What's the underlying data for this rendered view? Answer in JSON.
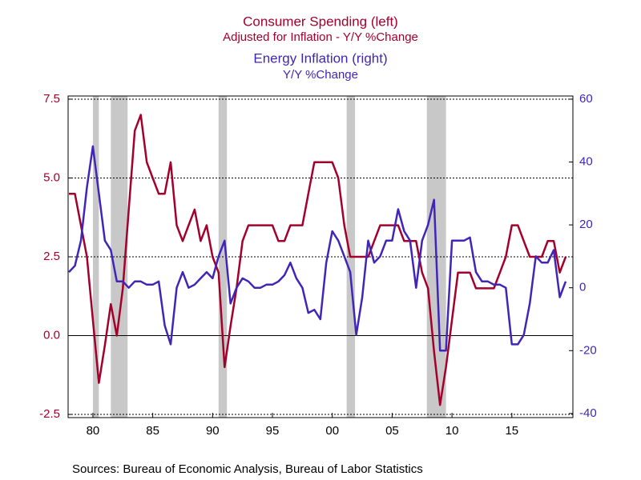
{
  "chart_data": {
    "type": "line",
    "title": "Consumer Spending (left)",
    "subtitle": "Adjusted for Inflation - Y/Y %Change",
    "title2": "Energy Inflation (right)",
    "subtitle2": "Y/Y %Change",
    "source": "Sources:  Bureau of Economic Analysis, Bureau of Labor Statistics",
    "x": [
      1978.0,
      1978.5,
      1979.0,
      1979.5,
      1980.0,
      1980.5,
      1981.0,
      1981.5,
      1982.0,
      1982.5,
      1983.0,
      1983.5,
      1984.0,
      1984.5,
      1985.0,
      1985.5,
      1986.0,
      1986.5,
      1987.0,
      1987.5,
      1988.0,
      1988.5,
      1989.0,
      1989.5,
      1990.0,
      1990.5,
      1991.0,
      1991.5,
      1992.0,
      1992.5,
      1993.0,
      1993.5,
      1994.0,
      1994.5,
      1995.0,
      1995.5,
      1996.0,
      1996.5,
      1997.0,
      1997.5,
      1998.0,
      1998.5,
      1999.0,
      1999.5,
      2000.0,
      2000.5,
      2001.0,
      2001.5,
      2002.0,
      2002.5,
      2003.0,
      2003.5,
      2004.0,
      2004.5,
      2005.0,
      2005.5,
      2006.0,
      2006.5,
      2007.0,
      2007.5,
      2008.0,
      2008.5,
      2009.0,
      2009.5,
      2010.0,
      2010.5,
      2011.0,
      2011.5,
      2012.0,
      2012.5,
      2013.0,
      2013.5,
      2014.0,
      2014.5,
      2015.0,
      2015.5,
      2016.0,
      2016.5,
      2017.0,
      2017.5,
      2018.0,
      2018.5,
      2019.0,
      2019.5
    ],
    "series": [
      {
        "name": "Consumer Spending (left)",
        "color": "#a3002c",
        "axis": "y",
        "values": [
          4.5,
          4.5,
          3.5,
          2.5,
          0.5,
          -1.5,
          -0.3,
          1.0,
          0.0,
          1.5,
          4.0,
          6.5,
          7.0,
          5.5,
          5.0,
          4.5,
          4.5,
          5.5,
          3.5,
          3.0,
          3.5,
          4.0,
          3.0,
          3.5,
          2.5,
          2.0,
          -1.0,
          0.3,
          1.5,
          3.0,
          3.5,
          3.5,
          3.5,
          3.5,
          3.5,
          3.0,
          3.0,
          3.5,
          3.5,
          3.5,
          4.5,
          5.5,
          5.5,
          5.5,
          5.5,
          5.0,
          3.5,
          2.5,
          2.5,
          2.5,
          2.5,
          3.0,
          3.5,
          3.5,
          3.5,
          3.5,
          3.0,
          3.0,
          3.0,
          2.0,
          1.5,
          -0.5,
          -2.2,
          -1.0,
          0.5,
          2.0,
          2.0,
          2.0,
          1.5,
          1.5,
          1.5,
          1.5,
          2.0,
          2.5,
          3.5,
          3.5,
          3.0,
          2.5,
          2.5,
          2.5,
          3.0,
          3.0,
          2.0,
          2.5
        ]
      },
      {
        "name": "Energy Inflation (right)",
        "color": "#4125b8",
        "axis": "y2",
        "values": [
          5,
          7,
          15,
          32,
          45,
          30,
          15,
          12,
          2,
          2,
          0,
          2,
          2,
          1,
          1,
          2,
          -12,
          -18,
          0,
          5,
          0,
          1,
          3,
          5,
          3,
          10,
          15,
          -5,
          0,
          3,
          2,
          0,
          0,
          1,
          1,
          2,
          4,
          8,
          3,
          0,
          -8,
          -7,
          -10,
          8,
          18,
          15,
          10,
          5,
          -15,
          -3,
          15,
          8,
          10,
          15,
          15,
          25,
          18,
          15,
          0,
          15,
          20,
          28,
          -20,
          -20,
          15,
          15,
          15,
          16,
          5,
          2,
          2,
          1,
          1,
          0,
          -18,
          -18,
          -15,
          -5,
          10,
          8,
          8,
          12,
          -3,
          2
        ]
      }
    ],
    "recessions": [
      [
        1980.0,
        1980.5
      ],
      [
        1981.5,
        1982.9
      ],
      [
        1990.5,
        1991.2
      ],
      [
        2001.2,
        2001.9
      ],
      [
        2007.9,
        2009.5
      ]
    ],
    "recession_color": "#c8c8c8",
    "xlim": [
      1977.93,
      2020.1
    ],
    "xticks": [
      {
        "value": 1980,
        "label": "80"
      },
      {
        "value": 1985,
        "label": "85"
      },
      {
        "value": 1990,
        "label": "90"
      },
      {
        "value": 1995,
        "label": "95"
      },
      {
        "value": 2000,
        "label": "00"
      },
      {
        "value": 2005,
        "label": "05"
      },
      {
        "value": 2010,
        "label": "10"
      },
      {
        "value": 2015,
        "label": "15"
      }
    ],
    "ylim": [
      -2.6,
      7.6
    ],
    "yticks": [
      {
        "value": -2.5,
        "label": "-2.5"
      },
      {
        "value": 0,
        "label": "0.0"
      },
      {
        "value": 2.5,
        "label": "2.5"
      },
      {
        "value": 5,
        "label": "5.0"
      },
      {
        "value": 7.5,
        "label": "7.5"
      }
    ],
    "y2lim": [
      -41.3,
      61.0
    ],
    "y2ticks": [
      -40,
      -20,
      0,
      20,
      40,
      60
    ],
    "grid": true
  }
}
